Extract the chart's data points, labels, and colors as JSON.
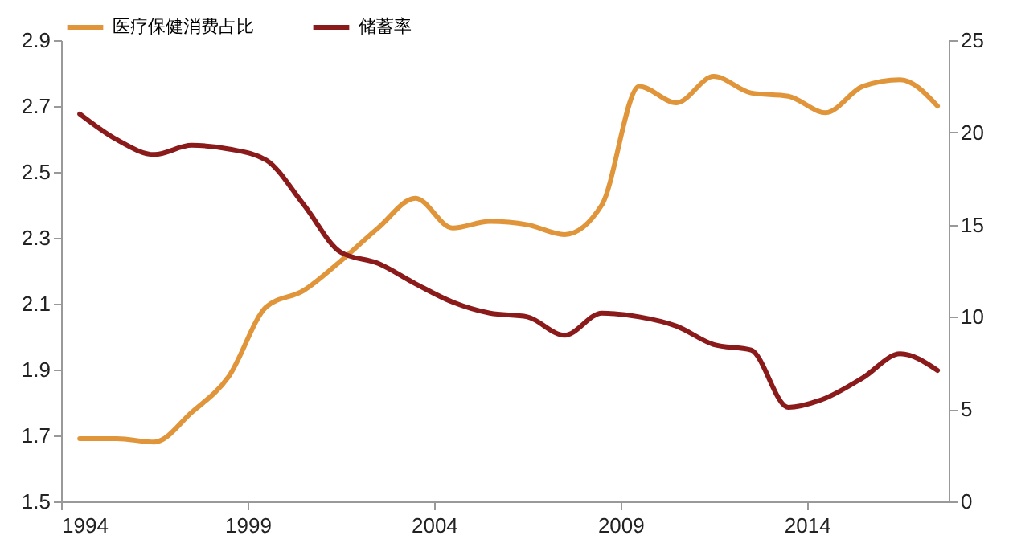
{
  "chart_data": {
    "type": "line",
    "x": [
      1994,
      1995,
      1996,
      1997,
      1998,
      1999,
      2000,
      2001,
      2002,
      2003,
      2004,
      2005,
      2006,
      2007,
      2008,
      2009,
      2010,
      2011,
      2012,
      2013,
      2014,
      2015,
      2016,
      2017
    ],
    "series": [
      {
        "name": "医疗保健消费占比",
        "color": "#e0953a",
        "values": [
          1.69,
          1.69,
          1.68,
          1.77,
          1.88,
          2.09,
          2.14,
          2.23,
          2.33,
          2.42,
          2.33,
          2.35,
          2.34,
          2.31,
          2.4,
          2.76,
          2.71,
          2.79,
          2.74,
          2.73,
          2.68,
          2.76,
          2.78,
          2.7
        ]
      },
      {
        "name": "储蓄率",
        "color": "#8b1a1a",
        "axis": "y2",
        "values": [
          21.0,
          19.6,
          18.8,
          19.3,
          19.1,
          18.5,
          16.1,
          13.5,
          12.9,
          11.8,
          10.8,
          10.2,
          10.0,
          9.0,
          10.2,
          10.0,
          9.5,
          8.5,
          8.2,
          5.1,
          5.6,
          6.7,
          8.0,
          7.1
        ]
      }
    ],
    "xlim": [
      1993.5,
      2017.3
    ],
    "xticks": [
      {
        "value": 1993.5,
        "label": "1994"
      },
      {
        "value": 1998.5,
        "label": "1999"
      },
      {
        "value": 2003.5,
        "label": "2004"
      },
      {
        "value": 2008.5,
        "label": "2009"
      },
      {
        "value": 2013.5,
        "label": "2014"
      }
    ],
    "ylim": [
      1.5,
      2.9
    ],
    "yticks": [
      1.5,
      1.7,
      1.9,
      2.1,
      2.3,
      2.5,
      2.7,
      2.9
    ],
    "y2lim": [
      0,
      25
    ],
    "y2ticks": [
      0,
      5,
      10,
      15,
      20,
      25
    ],
    "legend": "top",
    "grid": false
  }
}
